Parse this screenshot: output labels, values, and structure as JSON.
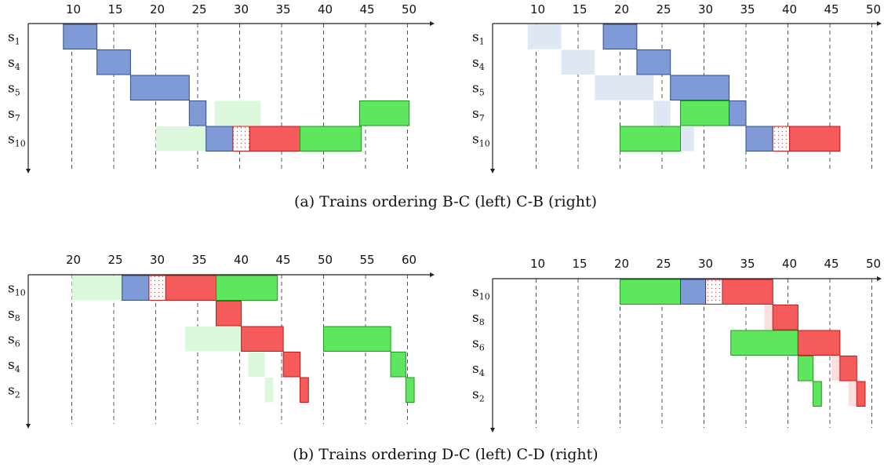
{
  "colors": {
    "blue": "#7f9ad6",
    "blue_stroke": "#2e4f8a",
    "red": "#f55b5b",
    "red_stroke": "#c01818",
    "green": "#5ee65e",
    "green_stroke": "#1f9a1f",
    "ghost_blue": "#dfe7f5",
    "ghost_green": "#dcf8dc",
    "ghost_red": "#fbdede"
  },
  "captions": {
    "a": "(a) Trains ordering B-C (left) C-B (right)",
    "b": "(b) Trains ordering D-C (left) C-D (right)"
  },
  "panels": [
    {
      "id": "a-left",
      "xlim": [
        5,
        52
      ],
      "ticks": [
        10,
        15,
        20,
        25,
        30,
        35,
        40,
        45,
        50
      ],
      "rows": [
        {
          "id": "s1",
          "base": "s",
          "sub": "1"
        },
        {
          "id": "s4",
          "base": "s",
          "sub": "4"
        },
        {
          "id": "s5",
          "base": "s",
          "sub": "5"
        },
        {
          "id": "s7",
          "base": "s",
          "sub": "7"
        },
        {
          "id": "s10",
          "base": "s",
          "sub": "10"
        }
      ],
      "blocks": [
        {
          "row": 0,
          "start": 9,
          "end": 13,
          "kind": "blue"
        },
        {
          "row": 1,
          "start": 13,
          "end": 17,
          "kind": "blue"
        },
        {
          "row": 2,
          "start": 17,
          "end": 24,
          "kind": "blue"
        },
        {
          "row": 3,
          "start": 27,
          "end": 32.5,
          "kind": "ghost_green"
        },
        {
          "row": 3,
          "start": 24,
          "end": 26,
          "kind": "blue"
        },
        {
          "row": 3,
          "start": 44.3,
          "end": 50.2,
          "kind": "green"
        },
        {
          "row": 4,
          "start": 20,
          "end": 26.5,
          "kind": "ghost_green"
        },
        {
          "row": 4,
          "start": 26,
          "end": 29.2,
          "kind": "blue"
        },
        {
          "row": 4,
          "start": 29.2,
          "end": 31.2,
          "kind": "dotted"
        },
        {
          "row": 4,
          "start": 31.2,
          "end": 37.2,
          "kind": "red"
        },
        {
          "row": 4,
          "start": 37.2,
          "end": 44.5,
          "kind": "green"
        }
      ]
    },
    {
      "id": "a-right",
      "xlim": [
        5,
        52
      ],
      "ticks": [
        10,
        15,
        20,
        25,
        30,
        35,
        40,
        45,
        50
      ],
      "rows": [
        {
          "id": "s1",
          "base": "s",
          "sub": "1"
        },
        {
          "id": "s4",
          "base": "s",
          "sub": "4"
        },
        {
          "id": "s5",
          "base": "s",
          "sub": "5"
        },
        {
          "id": "s7",
          "base": "s",
          "sub": "7"
        },
        {
          "id": "s10",
          "base": "s",
          "sub": "10"
        }
      ],
      "blocks": [
        {
          "row": 0,
          "start": 9,
          "end": 13,
          "kind": "ghost_blue"
        },
        {
          "row": 1,
          "start": 13,
          "end": 17,
          "kind": "ghost_blue"
        },
        {
          "row": 2,
          "start": 17,
          "end": 24,
          "kind": "ghost_blue"
        },
        {
          "row": 3,
          "start": 24,
          "end": 26,
          "kind": "ghost_blue"
        },
        {
          "row": 4,
          "start": 26,
          "end": 28.8,
          "kind": "ghost_blue"
        },
        {
          "row": 0,
          "start": 18,
          "end": 22,
          "kind": "blue"
        },
        {
          "row": 1,
          "start": 22,
          "end": 26,
          "kind": "blue"
        },
        {
          "row": 2,
          "start": 26,
          "end": 33,
          "kind": "blue"
        },
        {
          "row": 3,
          "start": 27.2,
          "end": 33,
          "kind": "green"
        },
        {
          "row": 3,
          "start": 33,
          "end": 35,
          "kind": "blue"
        },
        {
          "row": 4,
          "start": 20,
          "end": 27.2,
          "kind": "green"
        },
        {
          "row": 4,
          "start": 35,
          "end": 38.2,
          "kind": "blue"
        },
        {
          "row": 4,
          "start": 38.2,
          "end": 40.2,
          "kind": "dotted"
        },
        {
          "row": 4,
          "start": 40.2,
          "end": 46.2,
          "kind": "red"
        }
      ]
    },
    {
      "id": "b-left",
      "xlim": [
        15,
        62
      ],
      "ticks": [
        20,
        25,
        30,
        35,
        40,
        45,
        50,
        55,
        60
      ],
      "rows": [
        {
          "id": "s10",
          "base": "s",
          "sub": "10"
        },
        {
          "id": "s8",
          "base": "s",
          "sub": "8"
        },
        {
          "id": "s6",
          "base": "s",
          "sub": "6"
        },
        {
          "id": "s4",
          "base": "s",
          "sub": "4"
        },
        {
          "id": "s2",
          "base": "s",
          "sub": "2"
        }
      ],
      "blocks": [
        {
          "row": 0,
          "start": 20,
          "end": 27,
          "kind": "ghost_green"
        },
        {
          "row": 0,
          "start": 26,
          "end": 29.2,
          "kind": "blue"
        },
        {
          "row": 0,
          "start": 29.2,
          "end": 31.2,
          "kind": "dotted"
        },
        {
          "row": 0,
          "start": 31.2,
          "end": 37.2,
          "kind": "red"
        },
        {
          "row": 0,
          "start": 37.2,
          "end": 44.5,
          "kind": "green"
        },
        {
          "row": 1,
          "start": 37.2,
          "end": 40.2,
          "kind": "red"
        },
        {
          "row": 2,
          "start": 33.5,
          "end": 40.2,
          "kind": "ghost_green"
        },
        {
          "row": 2,
          "start": 40.2,
          "end": 45.2,
          "kind": "red"
        },
        {
          "row": 2,
          "start": 50,
          "end": 58,
          "kind": "green"
        },
        {
          "row": 3,
          "start": 41,
          "end": 43,
          "kind": "ghost_green"
        },
        {
          "row": 3,
          "start": 45.2,
          "end": 47.2,
          "kind": "red"
        },
        {
          "row": 3,
          "start": 58,
          "end": 59.8,
          "kind": "green"
        },
        {
          "row": 4,
          "start": 43,
          "end": 44,
          "kind": "ghost_green"
        },
        {
          "row": 4,
          "start": 47.2,
          "end": 48.2,
          "kind": "red"
        },
        {
          "row": 4,
          "start": 59.8,
          "end": 60.8,
          "kind": "green"
        }
      ]
    },
    {
      "id": "b-right",
      "xlim": [
        5,
        52
      ],
      "ticks": [
        10,
        15,
        20,
        25,
        30,
        35,
        40,
        45,
        50
      ],
      "rows": [
        {
          "id": "s10",
          "base": "s",
          "sub": "10"
        },
        {
          "id": "s8",
          "base": "s",
          "sub": "8"
        },
        {
          "id": "s6",
          "base": "s",
          "sub": "6"
        },
        {
          "id": "s4",
          "base": "s",
          "sub": "4"
        },
        {
          "id": "s2",
          "base": "s",
          "sub": "2"
        }
      ],
      "blocks": [
        {
          "row": 0,
          "start": 20,
          "end": 27.2,
          "kind": "green"
        },
        {
          "row": 0,
          "start": 27.2,
          "end": 30.2,
          "kind": "blue"
        },
        {
          "row": 0,
          "start": 30.2,
          "end": 32.2,
          "kind": "dotted"
        },
        {
          "row": 0,
          "start": 32.2,
          "end": 38.2,
          "kind": "red"
        },
        {
          "row": 1,
          "start": 37.2,
          "end": 38.2,
          "kind": "ghost_red"
        },
        {
          "row": 1,
          "start": 38.2,
          "end": 41.2,
          "kind": "red"
        },
        {
          "row": 2,
          "start": 33.2,
          "end": 41.2,
          "kind": "green"
        },
        {
          "row": 2,
          "start": 41.2,
          "end": 46.2,
          "kind": "red"
        },
        {
          "row": 3,
          "start": 45.2,
          "end": 46.2,
          "kind": "ghost_red"
        },
        {
          "row": 3,
          "start": 41.2,
          "end": 43,
          "kind": "green"
        },
        {
          "row": 3,
          "start": 46.2,
          "end": 48.2,
          "kind": "red"
        },
        {
          "row": 4,
          "start": 47.2,
          "end": 48.2,
          "kind": "ghost_red"
        },
        {
          "row": 4,
          "start": 43,
          "end": 44,
          "kind": "green"
        },
        {
          "row": 4,
          "start": 48.2,
          "end": 49.2,
          "kind": "red"
        }
      ]
    }
  ]
}
